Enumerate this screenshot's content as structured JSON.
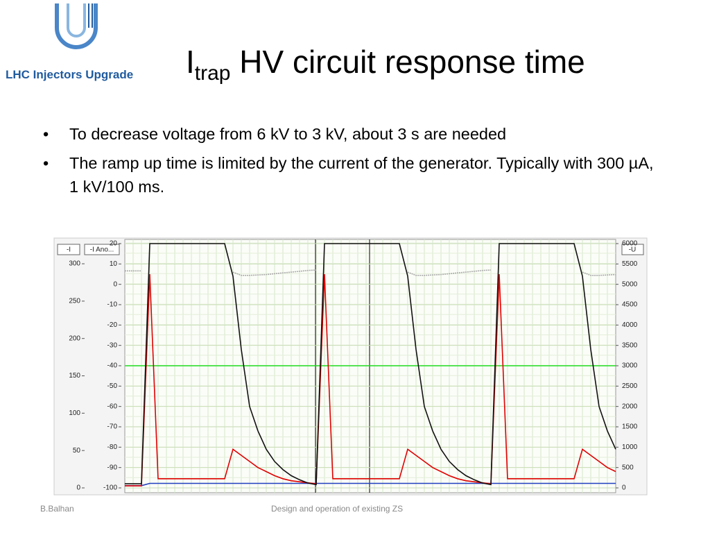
{
  "header": {
    "logo_text": "LHC Injectors Upgrade",
    "title_main": "I",
    "title_sub": "trap",
    "title_rest": "HV circuit response time"
  },
  "bullets": [
    "To decrease voltage from 6 kV to 3 kV, about 3 s are needed",
    "The ramp up time is limited by the current of the generator. Typically with 300 µA, 1 kV/100 ms."
  ],
  "footer": {
    "left": "B.Balhan",
    "center": "Design and operation of existing ZS"
  },
  "chart_data": {
    "type": "line",
    "ylabel": "-I",
    "y3label": "-I Ano...",
    "y2label": "-U",
    "ylim": [
      0,
      327
    ],
    "yticks": [
      0,
      50,
      100,
      150,
      200,
      250,
      300
    ],
    "y3lim": [
      -100,
      20
    ],
    "y3ticks": [
      -100,
      -90,
      -80,
      -70,
      -60,
      -50,
      -40,
      -30,
      -20,
      -10,
      0,
      10,
      20
    ],
    "y2lim": [
      0,
      6000
    ],
    "y2ticks": [
      0,
      500,
      1000,
      1500,
      2000,
      2500,
      3000,
      3500,
      4000,
      4500,
      5000,
      5500,
      6000
    ],
    "grid": true,
    "series": [
      {
        "color": "#22dd22",
        "axis": "y2",
        "values": [
          3000,
          3000,
          3000,
          3000,
          3000,
          3000,
          3000,
          3000,
          3000,
          3000,
          3000,
          3000,
          3000,
          3000,
          3000,
          3000,
          3000,
          3000,
          3000,
          3000,
          3000,
          3000,
          3000,
          3000,
          3000,
          3000,
          3000,
          3000,
          3000,
          3000,
          3000,
          3000,
          3000,
          3000,
          3000,
          3000,
          3000,
          3000,
          3000,
          3000,
          3000,
          3000,
          3000,
          3000,
          3000,
          3000,
          3000,
          3000,
          3000,
          3000,
          3000,
          3000,
          3000,
          3000,
          3000,
          3000,
          3000,
          3000,
          3000,
          3000
        ]
      },
      {
        "color": "#aaaaaa",
        "axis": "y2",
        "values": [
          5330,
          5330,
          5330,
          null,
          null,
          null,
          null,
          null,
          null,
          null,
          null,
          null,
          null,
          5300,
          5220,
          5220,
          5230,
          5240,
          5260,
          5280,
          5300,
          5320,
          5340,
          5350,
          null,
          null,
          null,
          null,
          null,
          null,
          null,
          null,
          null,
          null,
          5300,
          5220,
          5220,
          5230,
          5240,
          5260,
          5280,
          5300,
          5320,
          5340,
          5350,
          null,
          null,
          null,
          null,
          null,
          null,
          null,
          null,
          null,
          null,
          5300,
          5220,
          5220,
          5230,
          5240
        ]
      },
      {
        "color": "#1f3fbf",
        "axis": "y",
        "values": [
          3,
          3,
          3,
          6,
          6,
          6,
          6,
          6,
          6,
          6,
          6,
          6,
          6,
          6,
          6,
          6,
          6,
          6,
          6,
          6,
          6,
          6,
          6,
          6,
          6,
          6,
          6,
          6,
          6,
          6,
          6,
          6,
          6,
          6,
          6,
          6,
          6,
          6,
          6,
          6,
          6,
          6,
          6,
          6,
          6,
          6,
          6,
          6,
          6,
          6,
          6,
          6,
          6,
          6,
          6,
          6,
          6,
          6,
          6,
          6
        ]
      },
      {
        "color": "#e00000",
        "axis": "y3",
        "values": [
          -99,
          -99,
          -99,
          5,
          -95.5,
          -95.5,
          -95.5,
          -95.5,
          -95.5,
          -95.5,
          -95.5,
          -95.5,
          -95.5,
          -81,
          -84,
          -87,
          -90,
          -92,
          -94,
          -95.5,
          -96.5,
          -97,
          -97.5,
          -98,
          5,
          -95.5,
          -95.5,
          -95.5,
          -95.5,
          -95.5,
          -95.5,
          -95.5,
          -95.5,
          -95.5,
          -81,
          -84,
          -87,
          -90,
          -92,
          -94,
          -95.5,
          -96.5,
          -97,
          -97.5,
          -98,
          5,
          -95.5,
          -95.5,
          -95.5,
          -95.5,
          -95.5,
          -95.5,
          -95.5,
          -95.5,
          -95.5,
          -81,
          -84,
          -87,
          -90,
          -92
        ]
      },
      {
        "color": "#111111",
        "axis": "y2",
        "values": [
          100,
          100,
          100,
          6000,
          6000,
          6000,
          6000,
          6000,
          6000,
          6000,
          6000,
          6000,
          6000,
          5200,
          3400,
          2000,
          1400,
          950,
          650,
          450,
          300,
          200,
          120,
          80,
          6000,
          6000,
          6000,
          6000,
          6000,
          6000,
          6000,
          6000,
          6000,
          6000,
          5200,
          3400,
          2000,
          1400,
          950,
          650,
          450,
          300,
          200,
          120,
          80,
          6000,
          6000,
          6000,
          6000,
          6000,
          6000,
          6000,
          6000,
          6000,
          6000,
          5200,
          3400,
          2000,
          1400,
          950
        ]
      }
    ]
  }
}
